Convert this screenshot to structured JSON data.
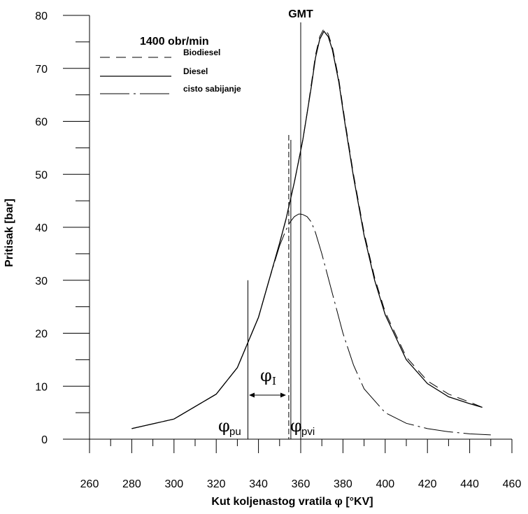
{
  "chart_data": {
    "type": "line",
    "xlabel": "Kut koljenastog vratila φ [°KV]",
    "ylabel": "Pritisak [bar]",
    "xlim": [
      260,
      460
    ],
    "ylim": [
      0,
      80
    ],
    "x_ticks": [
      260,
      280,
      300,
      320,
      340,
      360,
      380,
      400,
      420,
      440,
      460
    ],
    "y_ticks": [
      0,
      10,
      20,
      30,
      40,
      50,
      60,
      70,
      80
    ],
    "grid": false,
    "legend": {
      "title": "1400 obr/min",
      "position": "top-left",
      "entries": [
        "Biodiesel",
        "Diesel",
        "cisto sabijanje"
      ]
    },
    "series": [
      {
        "name": "Biodiesel",
        "style": "dashed",
        "x": [
          280,
          300,
          320,
          330,
          340,
          345,
          350,
          353,
          355,
          357,
          359,
          361,
          363,
          365,
          367,
          369,
          371,
          373,
          375,
          378,
          381,
          385,
          390,
          395,
          400,
          410,
          420,
          430,
          440,
          446
        ],
        "y": [
          2,
          3.8,
          8.5,
          13.5,
          23,
          30,
          37,
          41.5,
          45,
          48.5,
          52.5,
          56.5,
          61.5,
          67,
          72.5,
          76,
          77.5,
          76.5,
          74,
          68,
          60,
          50,
          39,
          30.5,
          24,
          15.5,
          11,
          8.5,
          7,
          6
        ]
      },
      {
        "name": "Diesel",
        "style": "solid",
        "x": [
          280,
          300,
          320,
          330,
          340,
          345,
          350,
          353,
          355,
          357,
          359,
          361,
          363,
          365,
          367,
          369,
          371,
          373,
          375,
          378,
          381,
          385,
          390,
          395,
          400,
          410,
          420,
          430,
          440,
          446
        ],
        "y": [
          2,
          3.8,
          8.5,
          13.5,
          23,
          30,
          37,
          41.5,
          45,
          48.5,
          52.5,
          56.5,
          61.5,
          66.5,
          72,
          75.5,
          77,
          76,
          73.5,
          67.5,
          59.5,
          49.5,
          38.5,
          30,
          23.5,
          15,
          10.5,
          8,
          6.7,
          6
        ]
      },
      {
        "name": "cisto sabijanje",
        "style": "dash-dot",
        "x": [
          280,
          300,
          320,
          330,
          340,
          345,
          350,
          353,
          355,
          357,
          359,
          360,
          361,
          363,
          365,
          367,
          370,
          375,
          380,
          385,
          390,
          400,
          410,
          420,
          430,
          440,
          450
        ],
        "y": [
          2,
          3.8,
          8.5,
          13.5,
          23,
          30,
          36.5,
          39.5,
          41,
          42,
          42.5,
          42.5,
          42.4,
          42,
          41,
          39,
          35,
          27.5,
          20,
          14,
          9.5,
          5,
          3,
          2,
          1.4,
          1,
          0.8
        ]
      }
    ],
    "annotations": {
      "gmt_label": "GMT",
      "gmt_x": 360,
      "phi_pu_label": "φ",
      "phi_pu_sub": "pu",
      "phi_pu_x": 335,
      "phi_pvi_label": "φ",
      "phi_pvi_sub": "pvi",
      "phi_pvi_x": 355,
      "phi_I_label": "φ",
      "phi_I_sub": "I"
    }
  }
}
